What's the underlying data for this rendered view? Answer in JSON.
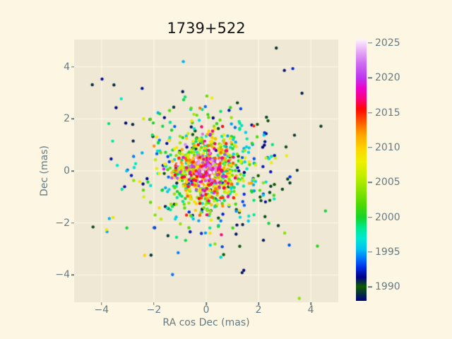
{
  "style": {
    "figure_bg": "#fdf6e3",
    "axes_bg": "#eee8d5",
    "grid_color": "#fdf6e3",
    "label_color": "#657b83",
    "tick_color": "#657b83",
    "title_color": "#151515"
  },
  "chart_data": {
    "type": "scatter",
    "title": "1739+522",
    "xlabel": "RA cos Dec (mas)",
    "ylabel": "Dec (mas)",
    "xlim": [
      -5.05,
      5.05
    ],
    "ylim": [
      -5.05,
      5.05
    ],
    "xticks": [
      -4,
      -2,
      0,
      2,
      4
    ],
    "yticks": [
      -4,
      -2,
      0,
      2,
      4
    ],
    "grid": true,
    "marker_radius_px": 2.2,
    "colorbar": {
      "colormap": "gist_ncar",
      "vmin": 1988,
      "vmax": 2025.5,
      "ticks": [
        1990,
        1995,
        2000,
        2005,
        2010,
        2015,
        2020,
        2025
      ],
      "stops": [
        [
          0.0,
          "#000080"
        ],
        [
          0.055,
          "#0c5c00"
        ],
        [
          0.09,
          "#000086"
        ],
        [
          0.125,
          "#0028e0"
        ],
        [
          0.16,
          "#0070ff"
        ],
        [
          0.2,
          "#00c4f0"
        ],
        [
          0.24,
          "#00e8d0"
        ],
        [
          0.28,
          "#00e88e"
        ],
        [
          0.32,
          "#16d426"
        ],
        [
          0.373,
          "#52da00"
        ],
        [
          0.427,
          "#8ee400"
        ],
        [
          0.48,
          "#c4ee00"
        ],
        [
          0.533,
          "#eef000"
        ],
        [
          0.587,
          "#ffd100"
        ],
        [
          0.64,
          "#ffa000"
        ],
        [
          0.693,
          "#ff4a00"
        ],
        [
          0.733,
          "#ff0800"
        ],
        [
          0.773,
          "#fa0078"
        ],
        [
          0.813,
          "#ee00c8"
        ],
        [
          0.853,
          "#be34f0"
        ],
        [
          0.907,
          "#cc6af2"
        ],
        [
          0.96,
          "#eab2f6"
        ],
        [
          1.0,
          "#fdf3fd"
        ]
      ]
    },
    "points": {
      "description": "VLBI position residuals clustered at (0,0); older epochs scatter wider, recent epochs concentrate at center. Reconstructed with a deterministic seeded generator.",
      "n": 1150,
      "seed": 11,
      "center": [
        0,
        0
      ],
      "year_segments": [
        [
          1988,
          1995,
          1.0
        ],
        [
          1995,
          2010,
          1.5
        ],
        [
          2010,
          2018,
          1.0
        ],
        [
          2018,
          2025.5,
          0.45
        ]
      ],
      "sigma_mas": {
        "base": 0.25,
        "amp": 1.9,
        "tau_years": 13
      },
      "outlier_fraction": 0.12,
      "outlier_scale": 2.6,
      "draw_order": "oldest-first"
    }
  }
}
